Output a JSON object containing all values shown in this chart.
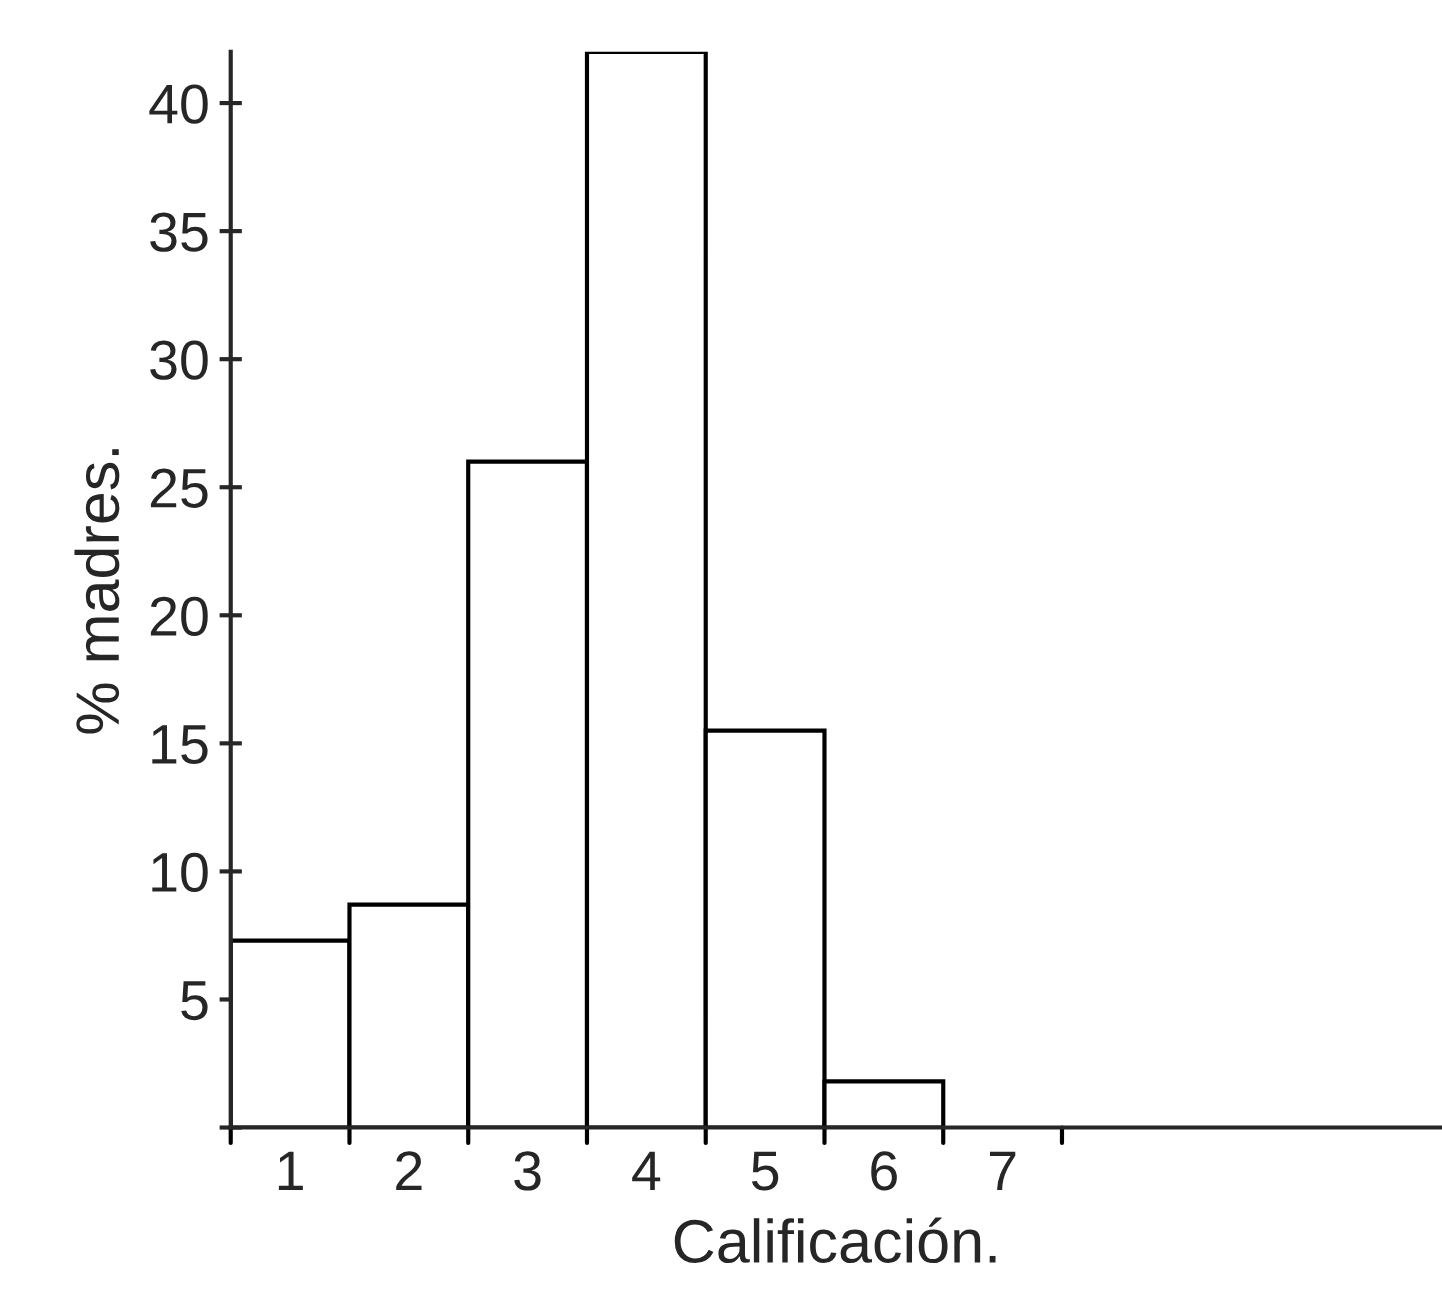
{
  "chart_data": {
    "type": "bar",
    "xlabel": "Calificación.",
    "ylabel": "% madres.",
    "categories": [
      "1",
      "2",
      "3",
      "4",
      "5",
      "6",
      "7"
    ],
    "values": [
      7.3,
      8.7,
      26.0,
      42.0,
      15.5,
      1.8,
      0
    ],
    "color": "#ffffff",
    "ylim": [
      0,
      42
    ],
    "yticks": [
      {
        "value": 0,
        "label": null
      },
      5,
      10,
      15,
      20,
      25,
      30,
      35,
      40
    ],
    "grid": false,
    "legend": false
  }
}
